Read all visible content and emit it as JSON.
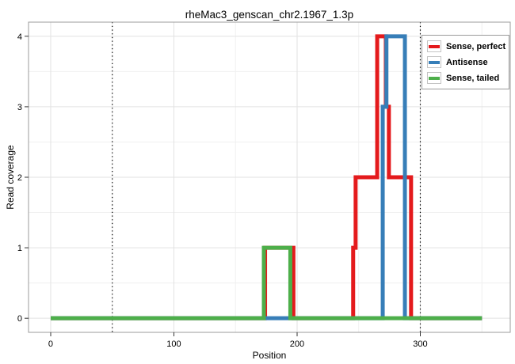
{
  "chart_data": {
    "type": "line",
    "subtype": "step",
    "title": "rheMac3_genscan_chr2.1967_1.3p",
    "xlabel": "Position",
    "ylabel": "Read coverage",
    "xlim": [
      -18,
      373
    ],
    "ylim": [
      -0.2,
      4.2
    ],
    "x_ticks": [
      0,
      100,
      200,
      300
    ],
    "y_ticks": [
      0,
      1,
      2,
      3,
      4
    ],
    "x_minor": [
      50,
      150,
      250,
      350
    ],
    "y_minor": [
      0.5,
      1.5,
      2.5,
      3.5
    ],
    "grid": true,
    "x_start": 0,
    "x_end": 350,
    "vlines": {
      "positions": [
        50,
        300
      ],
      "style": "dotted",
      "color": "#000000"
    },
    "series": [
      {
        "name": "Sense, perfect",
        "color": "#E41A1C",
        "breakpoints": [
          [
            0,
            0
          ],
          [
            174,
            1
          ],
          [
            197,
            0
          ],
          [
            245.5,
            1
          ],
          [
            247.5,
            2
          ],
          [
            265,
            4
          ],
          [
            272,
            3
          ],
          [
            274.5,
            2
          ],
          [
            292.5,
            0
          ]
        ]
      },
      {
        "name": "Antisense",
        "color": "#377EB8",
        "breakpoints": [
          [
            0,
            0
          ],
          [
            269.5,
            3
          ],
          [
            272.5,
            4
          ],
          [
            287.5,
            0
          ]
        ]
      },
      {
        "name": "Sense, tailed",
        "color": "#4DAF4A",
        "breakpoints": [
          [
            0,
            0
          ],
          [
            173,
            1
          ],
          [
            194.5,
            0
          ]
        ]
      }
    ],
    "legend_position": "top-right"
  },
  "legend": {
    "items": [
      {
        "label": "Sense, perfect",
        "color": "#E41A1C"
      },
      {
        "label": "Antisense",
        "color": "#377EB8"
      },
      {
        "label": "Sense, tailed",
        "color": "#4DAF4A"
      }
    ]
  }
}
